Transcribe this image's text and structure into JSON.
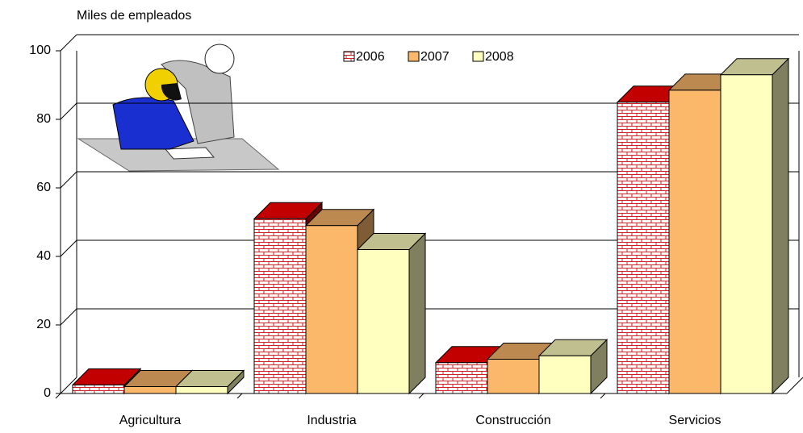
{
  "chart_data": {
    "type": "bar3d",
    "y_label": "Miles de empleados",
    "categories": [
      "Agricultura",
      "Industria",
      "Construcción",
      "Servicios"
    ],
    "series": [
      {
        "name": "2006",
        "color": "#cc0000",
        "pattern": "brick",
        "values": [
          2.5,
          51,
          9,
          85
        ]
      },
      {
        "name": "2007",
        "color": "#fbb86a",
        "values": [
          2,
          49,
          10,
          88.5
        ]
      },
      {
        "name": "2008",
        "color": "#ffffc0",
        "values": [
          2,
          42,
          11,
          93
        ]
      }
    ],
    "ylim": [
      0,
      100
    ],
    "yticks": [
      0,
      20,
      40,
      60,
      80,
      100
    ],
    "grid": true
  }
}
